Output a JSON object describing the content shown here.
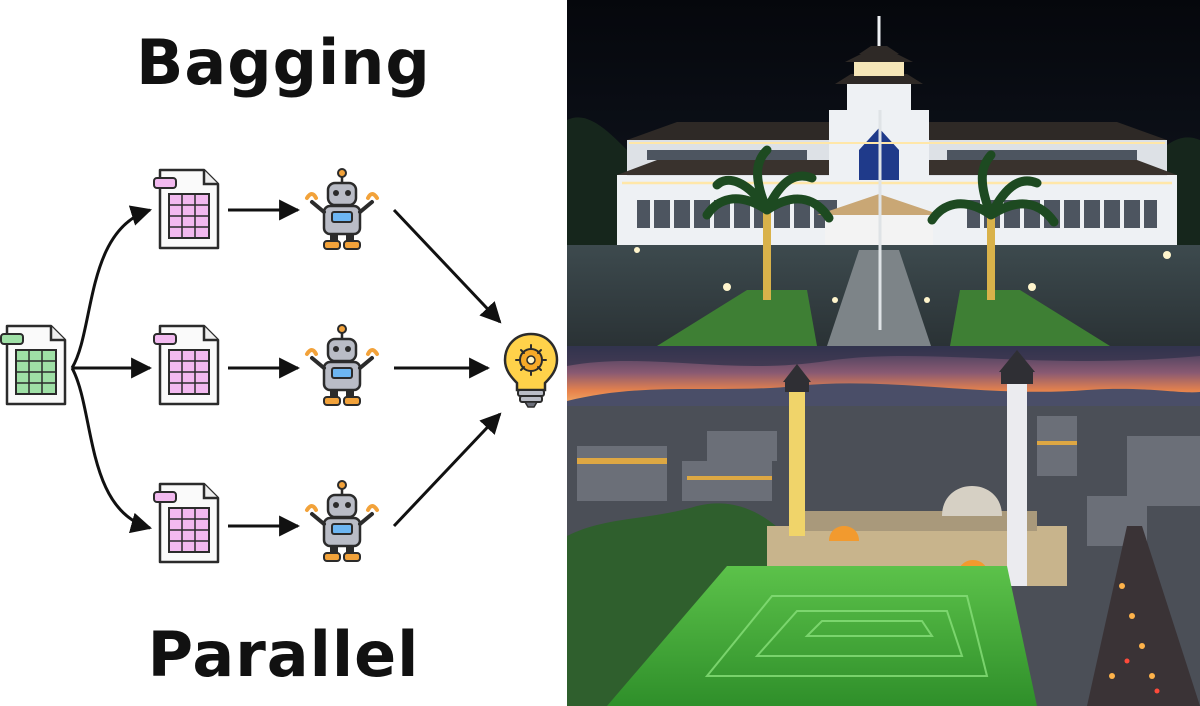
{
  "diagram": {
    "title": "Bagging",
    "subtitle": "Parallel"
  },
  "icons": {
    "source": "spreadsheet-icon",
    "subsets": "spreadsheet-icon",
    "models": "robot-icon",
    "result": "lightbulb-icon"
  },
  "colors": {
    "source_sheet": "#9fe0a6",
    "subset_sheet": "#f2b9ef",
    "robot_body": "#b9bcc6",
    "robot_accent": "#f2a23a",
    "bulb": "#ffd24a"
  },
  "photos": [
    {
      "name": "government-building-night"
    },
    {
      "name": "mosque-city-sunset"
    }
  ]
}
